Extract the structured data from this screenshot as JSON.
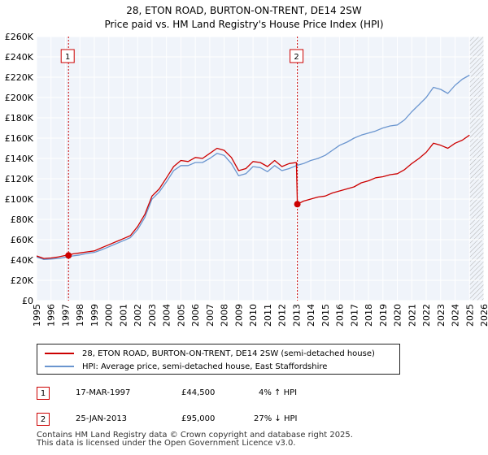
{
  "title": {
    "line1": "28, ETON ROAD, BURTON-ON-TRENT, DE14 2SW",
    "line2": "Price paid vs. HM Land Registry's House Price Index (HPI)"
  },
  "chart_data": {
    "type": "line",
    "title": "28, ETON ROAD, BURTON-ON-TRENT, DE14 2SW — Price paid vs. HM Land Registry's House Price Index (HPI)",
    "xlabel": "",
    "ylabel": "",
    "xlim": [
      1995,
      2026
    ],
    "ylim": [
      0,
      260000
    ],
    "grid": true,
    "y_ticks": [
      0,
      20000,
      40000,
      60000,
      80000,
      100000,
      120000,
      140000,
      160000,
      180000,
      200000,
      220000,
      240000,
      260000
    ],
    "y_tick_labels": [
      "£0",
      "£20K",
      "£40K",
      "£60K",
      "£80K",
      "£100K",
      "£120K",
      "£140K",
      "£160K",
      "£180K",
      "£200K",
      "£220K",
      "£240K",
      "£260K"
    ],
    "x_ticks": [
      1995,
      1996,
      1997,
      1998,
      1999,
      2000,
      2001,
      2002,
      2003,
      2004,
      2005,
      2006,
      2007,
      2008,
      2009,
      2010,
      2011,
      2012,
      2013,
      2014,
      2015,
      2016,
      2017,
      2018,
      2019,
      2020,
      2021,
      2022,
      2023,
      2024,
      2025,
      2026
    ],
    "x_tick_labels": [
      "1995",
      "1996",
      "1997",
      "1998",
      "1999",
      "2000",
      "2001",
      "2002",
      "2003",
      "2004",
      "2005",
      "2006",
      "2007",
      "2008",
      "2009",
      "2010",
      "2011",
      "2012",
      "2013",
      "2014",
      "2015",
      "2016",
      "2017",
      "2018",
      "2019",
      "2020",
      "2021",
      "2022",
      "2023",
      "2024",
      "2025",
      "2026"
    ],
    "forecast_start": 2025.0,
    "series": [
      {
        "name": "28, ETON ROAD, BURTON-ON-TRENT, DE14 2SW (semi-detached house)",
        "color": "#cc0000",
        "x": [
          1995.0,
          1995.5,
          1996.0,
          1996.5,
          1997.0,
          1997.21,
          1997.5,
          1998.0,
          1998.5,
          1999.0,
          1999.5,
          2000.0,
          2000.5,
          2001.0,
          2001.5,
          2002.0,
          2002.5,
          2003.0,
          2003.5,
          2004.0,
          2004.5,
          2005.0,
          2005.5,
          2006.0,
          2006.5,
          2007.0,
          2007.5,
          2008.0,
          2008.5,
          2009.0,
          2009.5,
          2010.0,
          2010.5,
          2011.0,
          2011.5,
          2012.0,
          2012.5,
          2013.0,
          2013.07,
          2013.5,
          2014.0,
          2014.5,
          2015.0,
          2015.5,
          2016.0,
          2016.5,
          2017.0,
          2017.5,
          2018.0,
          2018.5,
          2019.0,
          2019.5,
          2020.0,
          2020.5,
          2021.0,
          2021.5,
          2022.0,
          2022.5,
          2023.0,
          2023.5,
          2024.0,
          2024.5,
          2025.0
        ],
        "values": [
          44000,
          41500,
          42000,
          43000,
          44500,
          44500,
          46000,
          47000,
          48000,
          49000,
          52000,
          55000,
          58000,
          61000,
          64000,
          73000,
          85000,
          103000,
          110000,
          121000,
          132000,
          138000,
          137000,
          141000,
          140000,
          145000,
          150000,
          148000,
          141000,
          128000,
          130000,
          137000,
          136000,
          132000,
          138000,
          132000,
          135000,
          136000,
          95000,
          98000,
          100000,
          102000,
          103000,
          106000,
          108000,
          110000,
          112000,
          116000,
          118000,
          121000,
          122000,
          124000,
          125000,
          129000,
          135000,
          140000,
          146000,
          155000,
          153000,
          150000,
          155000,
          158000,
          163000
        ]
      },
      {
        "name": "HPI: Average price, semi-detached house, East Staffordshire",
        "color": "#6a95cf",
        "x": [
          1995.0,
          1995.5,
          1996.0,
          1996.5,
          1997.0,
          1997.5,
          1998.0,
          1998.5,
          1999.0,
          1999.5,
          2000.0,
          2000.5,
          2001.0,
          2001.5,
          2002.0,
          2002.5,
          2003.0,
          2003.5,
          2004.0,
          2004.5,
          2005.0,
          2005.5,
          2006.0,
          2006.5,
          2007.0,
          2007.5,
          2008.0,
          2008.5,
          2009.0,
          2009.5,
          2010.0,
          2010.5,
          2011.0,
          2011.5,
          2012.0,
          2012.5,
          2013.0,
          2013.5,
          2014.0,
          2014.5,
          2015.0,
          2015.5,
          2016.0,
          2016.5,
          2017.0,
          2017.5,
          2018.0,
          2018.5,
          2019.0,
          2019.5,
          2020.0,
          2020.5,
          2021.0,
          2021.5,
          2022.0,
          2022.5,
          2023.0,
          2023.5,
          2024.0,
          2024.5,
          2025.0
        ],
        "values": [
          43000,
          40500,
          41000,
          41500,
          42700,
          44000,
          45000,
          46500,
          47500,
          50000,
          53000,
          56000,
          59000,
          62000,
          70000,
          82000,
          100000,
          107000,
          117000,
          128000,
          133000,
          133000,
          136000,
          136000,
          140000,
          145000,
          143000,
          135000,
          123000,
          125000,
          132000,
          131000,
          127000,
          133000,
          128000,
          130000,
          133000,
          135000,
          138000,
          140000,
          143000,
          148000,
          153000,
          156000,
          160000,
          163000,
          165000,
          167000,
          170000,
          172000,
          173000,
          178000,
          186000,
          193000,
          200000,
          210000,
          208000,
          204000,
          212000,
          218000,
          222000
        ]
      }
    ],
    "sales": [
      {
        "label": "1",
        "x": 1997.21,
        "value": 44500
      },
      {
        "label": "2",
        "x": 2013.07,
        "value": 95000
      }
    ]
  },
  "legend": {
    "items": [
      {
        "label": "28, ETON ROAD, BURTON-ON-TRENT, DE14 2SW (semi-detached house)",
        "color": "#cc0000"
      },
      {
        "label": "HPI: Average price, semi-detached house, East Staffordshire",
        "color": "#6a95cf"
      }
    ]
  },
  "transactions": [
    {
      "num": "1",
      "date": "17-MAR-1997",
      "price": "£44,500",
      "hpi": "4% ↑ HPI"
    },
    {
      "num": "2",
      "date": "25-JAN-2013",
      "price": "£95,000",
      "hpi": "27% ↓ HPI"
    }
  ],
  "footer": {
    "line1": "Contains HM Land Registry data © Crown copyright and database right 2025.",
    "line2": "This data is licensed under the Open Government Licence v3.0."
  },
  "colors": {
    "price_paid": "#cc0000",
    "hpi": "#6a95cf",
    "plot_background": "#f0f4fa",
    "grid": "#ffffff"
  }
}
